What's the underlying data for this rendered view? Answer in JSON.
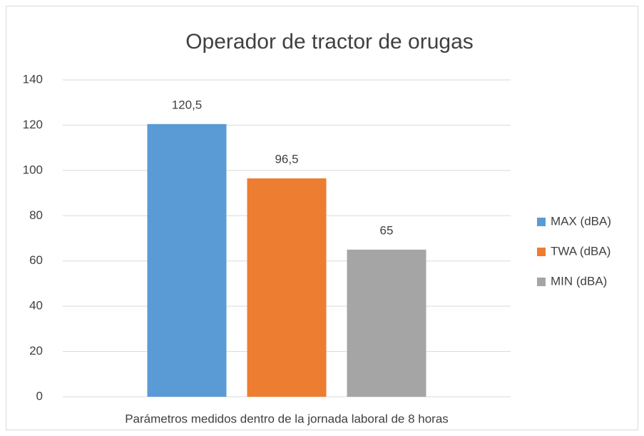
{
  "chart_data": {
    "type": "bar",
    "title": "Operador de tractor de orugas",
    "categories": [
      "Parámetros medidos dentro de la jornada laboral de 8 horas"
    ],
    "series": [
      {
        "name": "MAX (dBA)",
        "color": "#5b9bd5",
        "values": [
          120.5
        ],
        "value_labels": [
          "120,5"
        ]
      },
      {
        "name": "TWA (dBA)",
        "color": "#ed7d31",
        "values": [
          96.5
        ],
        "value_labels": [
          "96,5"
        ]
      },
      {
        "name": "MIN (dBA)",
        "color": "#a5a5a5",
        "values": [
          65
        ],
        "value_labels": [
          "65"
        ]
      }
    ],
    "ylim": [
      0,
      140
    ],
    "yticks": [
      0,
      20,
      40,
      60,
      80,
      100,
      120,
      140
    ],
    "grid": true,
    "legend": "right"
  }
}
